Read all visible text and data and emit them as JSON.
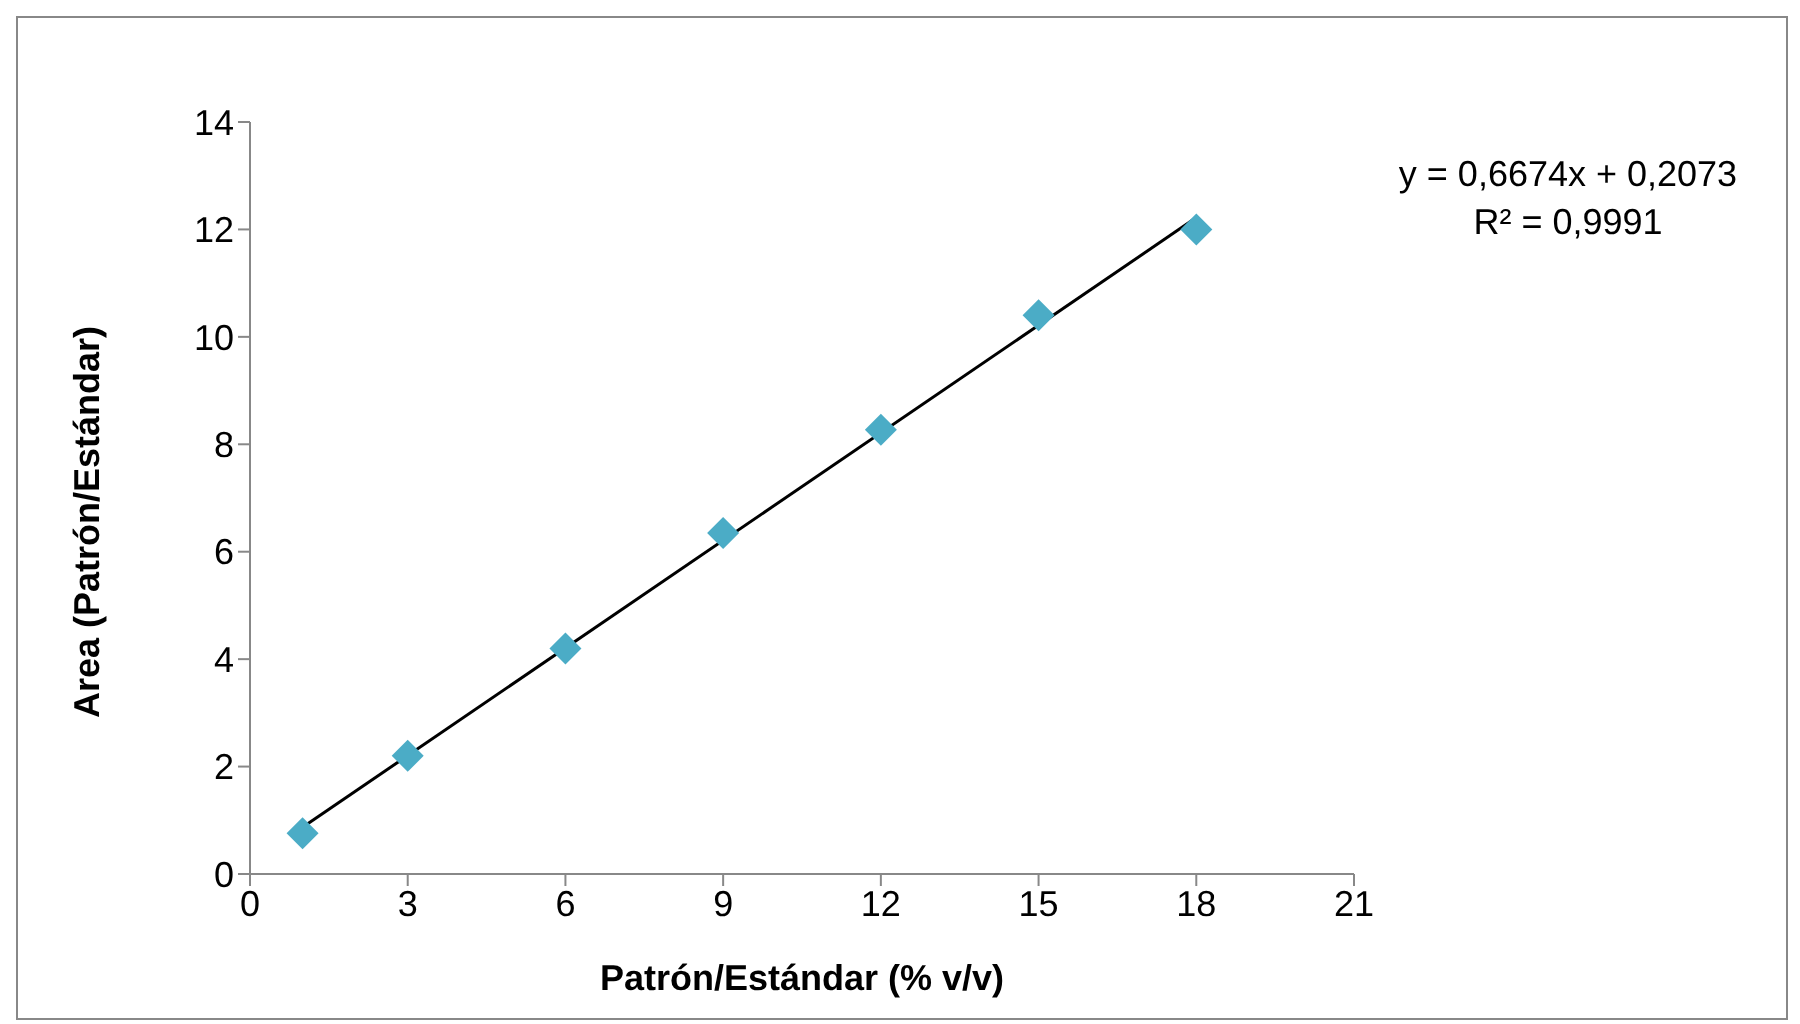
{
  "chart_data": {
    "type": "scatter",
    "xlabel": "Patrón/Estándar (% v/v)",
    "ylabel": "Area (Patrón/Estándar)",
    "annotations": [
      "y = 0,6674x + 0,2073",
      "R² = 0,9991"
    ],
    "xlim": [
      0,
      21
    ],
    "xticks": [
      0,
      3,
      6,
      9,
      12,
      15,
      18,
      21
    ],
    "ylim": [
      0,
      14
    ],
    "yticks": [
      0,
      2,
      4,
      6,
      8,
      10,
      12,
      14
    ],
    "grid": false,
    "series": [
      {
        "marker": "diamond",
        "color": "#4bacc6",
        "x": [
          1,
          3,
          6,
          9,
          12,
          15,
          18
        ],
        "values": [
          0.76,
          2.2,
          4.2,
          6.35,
          8.27,
          10.4,
          12.0
        ]
      },
      {
        "type": "line",
        "marker": "none",
        "color": "#000000",
        "x": [
          1,
          18
        ],
        "values": [
          0.87,
          12.22
        ]
      }
    ]
  }
}
